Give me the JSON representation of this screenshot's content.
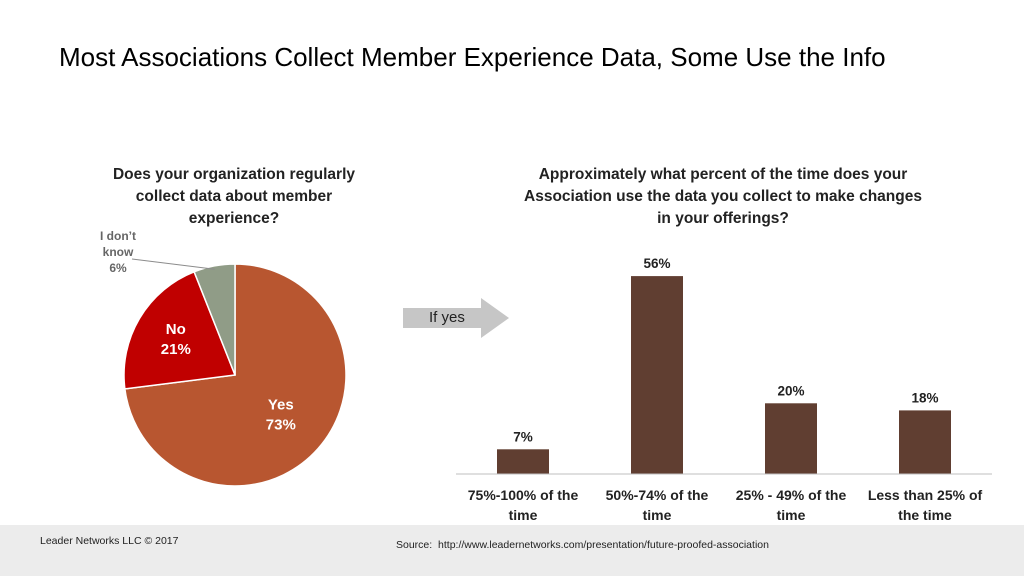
{
  "title": "Most Associations Collect Member Experience Data, Some Use the Info",
  "pie_question": [
    "Does your organization regularly",
    "collect data about member",
    "experience?"
  ],
  "bar_question": [
    "Approximately what percent of the time does your",
    "Association use the data you collect to make changes",
    "in your offerings?"
  ],
  "arrow": {
    "label": "If yes",
    "color": "#c6c6c6"
  },
  "footer": {
    "copyright": "Leader Networks LLC © 2017",
    "source_label": "Source:",
    "source_url": "http://www.leadernetworks.com/presentation/future-proofed-association"
  },
  "chart_data": [
    {
      "type": "pie",
      "title": "Does your organization regularly collect data about member experience?",
      "slices": [
        {
          "label": "Yes",
          "value": 73,
          "display": "73%",
          "color": "#b85630",
          "label_lines": [
            "Yes",
            "73%"
          ],
          "label_color": "#ffffff"
        },
        {
          "label": "No",
          "value": 21,
          "display": "21%",
          "color": "#c00000",
          "label_lines": [
            "No",
            "21%"
          ],
          "label_color": "#ffffff"
        },
        {
          "label": "I don’t know",
          "value": 6,
          "display": "6%",
          "color": "#909c87",
          "label_lines": [
            "I don’t",
            "know",
            "6%"
          ],
          "label_color": "#666666"
        }
      ]
    },
    {
      "type": "bar",
      "title": "Approximately what percent of the time does your Association use the data you collect to make changes in your offerings?",
      "categories": [
        [
          "75%-100% of the",
          "time"
        ],
        [
          "50%-74% of the",
          "time"
        ],
        [
          "25% - 49% of the",
          "time"
        ],
        [
          "Less than 25% of",
          "the time"
        ]
      ],
      "values": [
        7,
        56,
        20,
        18
      ],
      "value_labels": [
        "7%",
        "56%",
        "20%",
        "18%"
      ],
      "ylim": [
        0,
        60
      ],
      "bar_color": "#603e31",
      "axis_color": "#bfbfbf"
    }
  ]
}
